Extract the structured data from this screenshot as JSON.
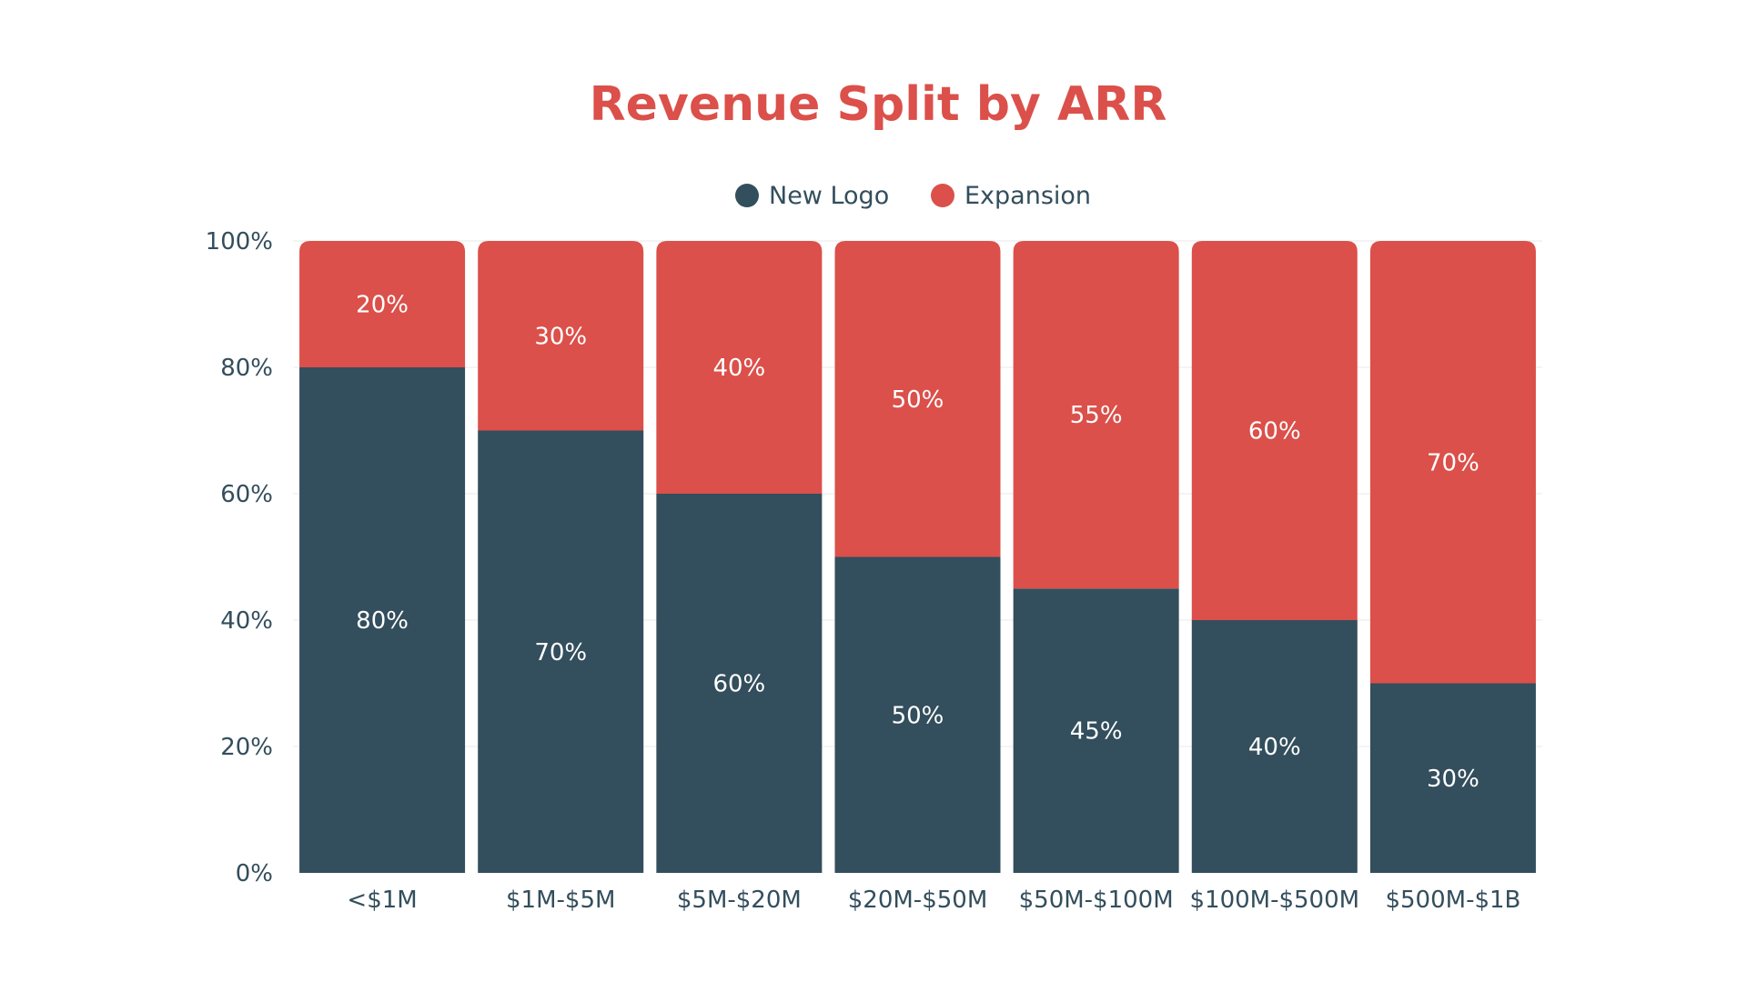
{
  "chart_data": {
    "type": "bar",
    "stacked": true,
    "title": "Revenue Split by ARR",
    "xlabel": "",
    "ylabel": "",
    "categories": [
      "<$1M",
      "$1M-$5M",
      "$5M-$20M",
      "$20M-$50M",
      "$50M-$100M",
      "$100M-$500M",
      "$500M-$1B"
    ],
    "series": [
      {
        "name": "New Logo",
        "color": "#334E5C",
        "values": [
          80,
          70,
          60,
          50,
          45,
          40,
          30
        ],
        "labels": [
          "80%",
          "70%",
          "60%",
          "50%",
          "45%",
          "40%",
          "30%"
        ]
      },
      {
        "name": "Expansion",
        "color": "#DB504A",
        "values": [
          20,
          30,
          40,
          50,
          55,
          60,
          70
        ],
        "labels": [
          "20%",
          "30%",
          "40%",
          "50%",
          "55%",
          "60%",
          "70%"
        ]
      }
    ],
    "ylim": [
      0,
      100
    ],
    "yticks": [
      "0%",
      "20%",
      "40%",
      "60%",
      "80%",
      "100%"
    ],
    "grid": true,
    "legend_position": "top-center"
  },
  "colors": {
    "title": "#DB504A",
    "text": "#334E5C",
    "grid": "#E8E8E8",
    "bar_label": "#FFFFFF"
  }
}
